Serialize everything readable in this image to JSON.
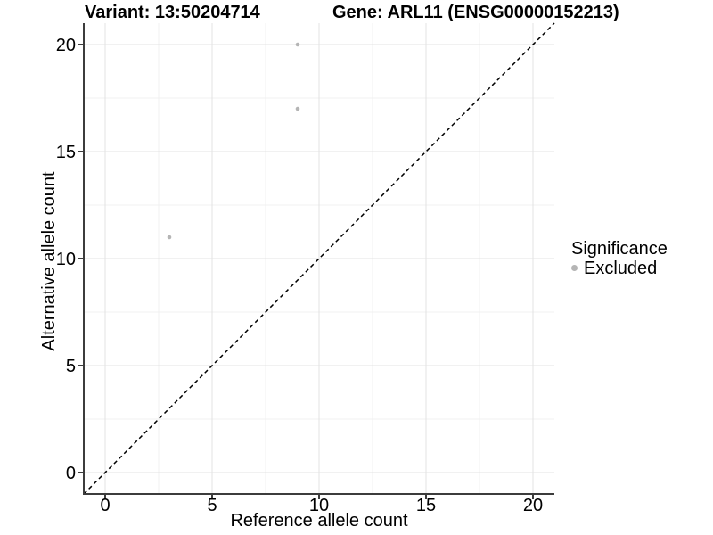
{
  "chart_data": {
    "type": "scatter",
    "title_left": "Variant: 13:50204714",
    "title_right": "Gene: ARL11 (ENSG00000152213)",
    "xlabel": "Reference allele count",
    "ylabel": "Alternative allele count",
    "xlim": [
      -1,
      21
    ],
    "ylim": [
      -1,
      21
    ],
    "x_ticks": [
      0,
      5,
      10,
      15,
      20
    ],
    "y_ticks": [
      0,
      5,
      10,
      15,
      20
    ],
    "x_minor_gridlines": [
      2.5,
      7.5,
      12.5,
      17.5
    ],
    "y_minor_gridlines": [
      2.5,
      7.5,
      12.5,
      17.5
    ],
    "grid": "major+minor",
    "legend": {
      "title": "Significance",
      "position": "right",
      "entries": [
        {
          "label": "Excluded",
          "color": "#b5b5b5"
        }
      ]
    },
    "series": [
      {
        "name": "Excluded",
        "color": "#b5b5b5",
        "points": [
          {
            "x": 9,
            "y": 20
          },
          {
            "x": 9,
            "y": 17
          },
          {
            "x": 3,
            "y": 11
          }
        ]
      }
    ],
    "reference_line": {
      "type": "identity",
      "slope": 1,
      "intercept": 0,
      "style": "dashed",
      "color": "#000000"
    },
    "colors": {
      "background": "#ffffff",
      "major_grid": "#e3e3e3",
      "minor_grid": "#f0f0f0",
      "axis_line": "#3c3c3c",
      "text": "#000000",
      "point": "#b5b5b5"
    }
  }
}
